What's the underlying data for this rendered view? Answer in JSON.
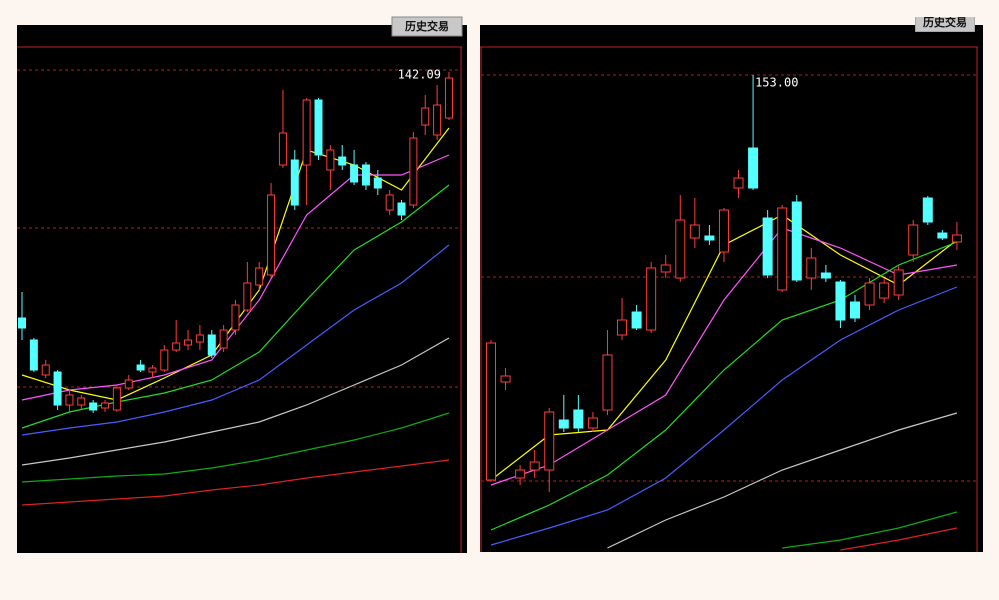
{
  "chart_data": [
    {
      "type": "candlestick",
      "button": "历史交易",
      "annotation": "142.09",
      "up_color": "#ff3c3c",
      "down_color": "#54ffff",
      "ylim": [
        46.5,
        146.5
      ],
      "open": [
        92.9,
        88.5,
        81.5,
        82.1,
        75.5,
        75.5,
        75.9,
        74.9,
        74.5,
        78.9,
        83.5,
        82.1,
        82.5,
        86.5,
        87.5,
        88.1,
        89.5,
        86.9,
        90.5,
        94.5,
        99.5,
        101.5,
        123.5,
        124.5,
        123.5,
        136.5,
        122.5,
        125.1,
        123.5,
        123.5,
        120.9,
        114.5,
        115.9,
        115.5,
        131.5,
        129.5,
        132.9
      ],
      "close": [
        90.9,
        82.5,
        83.5,
        75.5,
        77.5,
        76.9,
        74.5,
        75.9,
        78.9,
        80.5,
        82.5,
        82.9,
        86.5,
        87.9,
        88.5,
        89.5,
        85.5,
        90.5,
        95.5,
        99.9,
        102.9,
        117.5,
        129.9,
        115.5,
        136.5,
        125.5,
        126.5,
        123.5,
        120.1,
        119.5,
        118.9,
        117.5,
        113.5,
        128.9,
        134.9,
        135.5,
        140.9
      ],
      "high": [
        98.1,
        88.9,
        84.5,
        82.5,
        78.5,
        77.5,
        76.5,
        76.5,
        79.5,
        81.5,
        84.5,
        83.5,
        87.5,
        92.5,
        90.5,
        91.5,
        90.5,
        91.5,
        96.5,
        104.1,
        104.1,
        119.9,
        138.5,
        126.5,
        136.9,
        136.9,
        127.5,
        127.5,
        126.5,
        124.1,
        122.5,
        118.5,
        116.5,
        130.1,
        137.5,
        139.5,
        142.09
      ],
      "low": [
        88.5,
        82.1,
        80.9,
        74.5,
        74.1,
        74.5,
        73.9,
        74.1,
        74.1,
        78.5,
        82.1,
        80.9,
        82.1,
        86.1,
        86.5,
        86.5,
        84.9,
        86.1,
        89.5,
        94.1,
        98.5,
        100.9,
        122.9,
        114.5,
        115.5,
        124.5,
        118.5,
        122.5,
        119.5,
        118.5,
        117.5,
        113.5,
        112.5,
        114.9,
        129.5,
        128.5,
        132.5
      ],
      "lines": [
        {
          "color": "#ffff00",
          "x": [
            0,
            4,
            8,
            12,
            16,
            20,
            24,
            28,
            32,
            36
          ],
          "values": [
            81.5,
            78.5,
            76.5,
            80.9,
            85.5,
            98.5,
            126.5,
            123.5,
            118.5,
            130.9
          ]
        },
        {
          "color": "#ff55ff",
          "x": [
            0,
            4,
            8,
            12,
            16,
            20,
            24,
            28,
            32,
            36
          ],
          "values": [
            76.5,
            78.5,
            79.5,
            81.5,
            84.5,
            96.5,
            113.5,
            121.5,
            121.5,
            125.5
          ]
        },
        {
          "color": "#22dd22",
          "x": [
            0,
            4,
            8,
            12,
            16,
            20,
            24,
            28,
            32,
            36
          ],
          "values": [
            70.9,
            74.1,
            76.1,
            77.9,
            80.5,
            86.1,
            96.5,
            106.5,
            112.1,
            119.5
          ]
        },
        {
          "color": "#4a5cff",
          "x": [
            0,
            4,
            8,
            12,
            16,
            20,
            24,
            28,
            32,
            36
          ],
          "values": [
            69.5,
            70.9,
            72.1,
            74.1,
            76.5,
            80.5,
            87.5,
            94.5,
            99.9,
            107.5
          ]
        },
        {
          "color": "#c8c8c8",
          "x": [
            0,
            4,
            8,
            12,
            16,
            20,
            24,
            28,
            32,
            36
          ],
          "values": [
            63.5,
            64.9,
            66.5,
            68.1,
            70.1,
            72.1,
            75.5,
            79.5,
            83.5,
            88.9
          ]
        },
        {
          "color": "#11aa11",
          "x": [
            0,
            4,
            8,
            12,
            16,
            20,
            24,
            28,
            32,
            36
          ],
          "values": [
            60.1,
            60.7,
            61.3,
            61.7,
            62.9,
            64.5,
            66.5,
            68.5,
            70.9,
            73.9
          ]
        },
        {
          "color": "#dd2222",
          "x": [
            0,
            4,
            8,
            12,
            16,
            20,
            24,
            28,
            32,
            36
          ],
          "values": [
            55.5,
            56.1,
            56.7,
            57.3,
            58.5,
            59.5,
            60.9,
            62.1,
            63.3,
            64.5
          ]
        }
      ]
    },
    {
      "type": "candlestick",
      "button": "历史交易",
      "annotation": "153.00",
      "up_color": "#ff3c3c",
      "down_color": "#54ffff",
      "ylim": [
        58,
        158
      ],
      "open": [
        72,
        91.6,
        72.4,
        74,
        74,
        84,
        86,
        82.4,
        86,
        101,
        105.6,
        102,
        113.6,
        112.4,
        120.4,
        120.8,
        117.6,
        130.4,
        138.4,
        124.4,
        110,
        127.6,
        112.4,
        113.4,
        111.6,
        107.6,
        107,
        108.4,
        109,
        117,
        128.4,
        121.4,
        119.6
      ],
      "close": [
        99.4,
        92.8,
        74,
        75.6,
        85.6,
        82.4,
        82.4,
        84.4,
        97,
        104,
        102.4,
        114.4,
        115,
        124,
        123,
        120,
        126,
        132.4,
        130.4,
        113,
        126.4,
        112,
        116.4,
        112.4,
        104,
        104.4,
        111.4,
        111.4,
        114,
        123,
        123.6,
        120.4,
        121
      ],
      "high": [
        100,
        94.4,
        75,
        78,
        86.4,
        89,
        89,
        85.6,
        102,
        108.4,
        107,
        115.6,
        117,
        129,
        128.4,
        123,
        126.4,
        134,
        153,
        126,
        127,
        129,
        118.4,
        115,
        112,
        109,
        112.4,
        112.4,
        115,
        124,
        128.8,
        122,
        123.6
      ],
      "low": [
        71.6,
        90,
        71,
        72.4,
        69.6,
        81.6,
        81.6,
        81.6,
        85,
        100,
        102,
        101.4,
        112.4,
        111.6,
        118.4,
        119,
        115.6,
        128.4,
        130,
        112.4,
        109.6,
        111.6,
        110,
        111.6,
        102.4,
        103.6,
        106,
        107.4,
        108,
        115.6,
        123,
        120,
        118
      ],
      "lines": [
        {
          "color": "#ffff00",
          "x": [
            0,
            4,
            8,
            12,
            16,
            20,
            24,
            28,
            32
          ],
          "values": [
            72,
            81,
            82,
            96,
            119,
            125,
            117,
            111,
            120
          ]
        },
        {
          "color": "#ff55ff",
          "x": [
            0,
            4,
            8,
            12,
            16,
            20,
            24,
            28,
            32
          ],
          "values": [
            71,
            75,
            82,
            89,
            108,
            122.4,
            118.4,
            113,
            115
          ]
        },
        {
          "color": "#22dd22",
          "x": [
            0,
            4,
            8,
            12,
            16,
            20,
            24,
            28,
            32
          ],
          "values": [
            62,
            67,
            73,
            82,
            94,
            104,
            108,
            115,
            119.6
          ]
        },
        {
          "color": "#4a5cff",
          "x": [
            0,
            4,
            8,
            12,
            16,
            20,
            24,
            28,
            32
          ],
          "values": [
            59,
            62.4,
            66,
            72.4,
            82,
            92,
            100,
            106,
            110.6
          ]
        },
        {
          "color": "#c8c8c8",
          "x": [
            8,
            12,
            16,
            20,
            24,
            28,
            32
          ],
          "values": [
            58.4,
            64,
            68.6,
            74,
            78,
            82,
            85.4
          ]
        },
        {
          "color": "#11aa11",
          "x": [
            20,
            24,
            28,
            32
          ],
          "values": [
            58.4,
            60,
            62.4,
            65.6
          ]
        },
        {
          "color": "#dd2222",
          "x": [
            24,
            28,
            32
          ],
          "values": [
            58,
            60,
            62.4
          ]
        }
      ]
    }
  ]
}
